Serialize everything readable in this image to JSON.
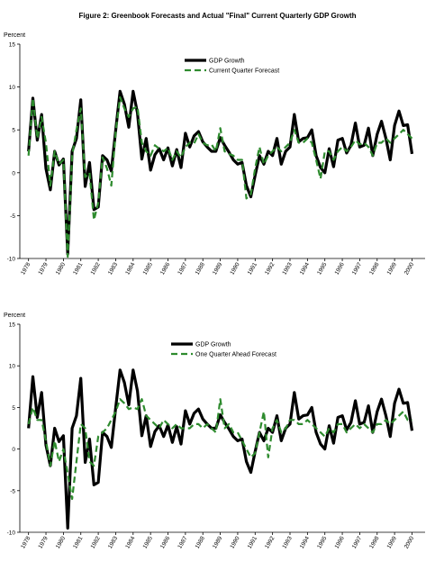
{
  "figure_title": "Figure 2: Greenbook Forecasts and Actual \"Final\" Current Quarterly GDP Growth",
  "chart_data": [
    {
      "type": "line",
      "ylabel": "Percent",
      "ylim": [
        -10,
        15
      ],
      "yticks": [
        -10,
        -5,
        0,
        5,
        10,
        15
      ],
      "xlim": [
        1977.5,
        2000.75
      ],
      "xtick_labels": [
        "1978",
        "1979",
        "1980",
        "1981",
        "1982",
        "1983",
        "1984",
        "1985",
        "1986",
        "1987",
        "1988",
        "1989",
        "1990",
        "1991",
        "1992",
        "1993",
        "1994",
        "1995",
        "1996",
        "1997",
        "1998",
        "1999",
        "2000"
      ],
      "legend_position": "top-center",
      "series": [
        {
          "name": "GDP Growth",
          "color": "#000000",
          "style": "solid",
          "values": [
            2.5,
            8.7,
            3.8,
            6.8,
            0.5,
            -2.0,
            2.5,
            0.9,
            1.6,
            -9.5,
            2.5,
            4.0,
            8.5,
            -1.6,
            1.2,
            -4.3,
            -4.0,
            2.0,
            1.5,
            0.2,
            5.0,
            9.5,
            8.0,
            5.3,
            9.5,
            7.0,
            1.6,
            4.0,
            0.3,
            2.1,
            2.8,
            1.5,
            2.9,
            0.8,
            2.7,
            0.6,
            4.6,
            3.0,
            4.3,
            4.8,
            3.6,
            3.0,
            2.5,
            2.5,
            4.1,
            3.2,
            2.4,
            1.5,
            1.0,
            1.2,
            -1.5,
            -2.8,
            -0.3,
            2.0,
            1.0,
            2.5,
            2.0,
            4.0,
            1.0,
            2.5,
            3.0,
            6.8,
            3.6,
            4.0,
            4.1,
            5.0,
            2.0,
            0.6,
            0.0,
            2.8,
            0.7,
            3.8,
            4.0,
            2.3,
            3.2,
            5.8,
            3.0,
            3.2,
            5.2,
            2.0,
            4.5,
            6.0,
            4.0,
            1.5,
            5.5,
            7.2,
            5.5,
            5.6,
            2.2
          ]
        },
        {
          "name": "Current Quarter Forecast",
          "color": "#2e8b2e",
          "style": "dashed",
          "values": [
            2.0,
            8.7,
            4.0,
            6.5,
            3.5,
            -1.5,
            2.5,
            1.0,
            1.5,
            -9.8,
            2.0,
            5.0,
            7.5,
            -0.5,
            0.0,
            -5.5,
            -3.5,
            1.8,
            0.5,
            -1.5,
            4.8,
            8.8,
            7.5,
            6.5,
            7.5,
            7.7,
            3.5,
            2.5,
            2.0,
            3.2,
            2.8,
            2.5,
            2.9,
            1.5,
            2.5,
            1.8,
            3.0,
            3.5,
            3.4,
            4.5,
            3.5,
            3.2,
            3.3,
            2.5,
            5.2,
            2.5,
            2.2,
            2.0,
            1.5,
            1.5,
            -3.0,
            -2.5,
            0.5,
            3.0,
            1.0,
            2.0,
            2.5,
            3.0,
            2.5,
            3.0,
            3.5,
            5.0,
            3.5,
            3.5,
            4.0,
            3.5,
            1.5,
            -0.7,
            2.5,
            2.5,
            1.5,
            2.5,
            3.0,
            2.5,
            3.0,
            3.8,
            3.3,
            3.5,
            3.0,
            2.0,
            3.5,
            3.5,
            4.0,
            3.5,
            4.0,
            4.5,
            5.0,
            4.5,
            4.0
          ]
        }
      ]
    },
    {
      "type": "line",
      "ylabel": "Percent",
      "ylim": [
        -10,
        15
      ],
      "yticks": [
        -10,
        -5,
        0,
        5,
        10,
        15
      ],
      "xlim": [
        1977.5,
        2000.75
      ],
      "xtick_labels": [
        "1978",
        "1979",
        "1980",
        "1981",
        "1982",
        "1983",
        "1984",
        "1985",
        "1986",
        "1987",
        "1988",
        "1989",
        "1990",
        "1991",
        "1992",
        "1993",
        "1994",
        "1995",
        "1996",
        "1997",
        "1998",
        "1999",
        "2000"
      ],
      "legend_position": "top-center",
      "series": [
        {
          "name": "GDP Growth",
          "color": "#000000",
          "style": "solid",
          "values": [
            2.5,
            8.7,
            3.8,
            6.8,
            0.5,
            -2.0,
            2.5,
            0.9,
            1.6,
            -9.5,
            2.5,
            4.0,
            8.5,
            -1.6,
            1.2,
            -4.3,
            -4.0,
            2.0,
            1.5,
            0.2,
            5.0,
            9.5,
            8.0,
            5.3,
            9.5,
            7.0,
            1.6,
            4.0,
            0.3,
            2.1,
            2.8,
            1.5,
            2.9,
            0.8,
            2.7,
            0.6,
            4.6,
            3.0,
            4.3,
            4.8,
            3.6,
            3.0,
            2.5,
            2.5,
            4.1,
            3.2,
            2.4,
            1.5,
            1.0,
            1.2,
            -1.5,
            -2.8,
            -0.3,
            2.0,
            1.0,
            2.5,
            2.0,
            4.0,
            1.0,
            2.5,
            3.0,
            6.8,
            3.6,
            4.0,
            4.1,
            5.0,
            2.0,
            0.6,
            0.0,
            2.8,
            0.7,
            3.8,
            4.0,
            2.3,
            3.2,
            5.8,
            3.0,
            3.2,
            5.2,
            2.0,
            4.5,
            6.0,
            4.0,
            1.5,
            5.5,
            7.2,
            5.5,
            5.6,
            2.2
          ]
        },
        {
          "name": "One Quarter Ahead Forecast",
          "color": "#2e8b2e",
          "style": "dashed",
          "values": [
            3.0,
            5.0,
            3.5,
            3.5,
            1.0,
            -2.0,
            1.0,
            -1.5,
            0.0,
            -3.0,
            -6.0,
            -1.5,
            3.0,
            2.5,
            -1.5,
            -2.0,
            1.5,
            2.0,
            2.5,
            3.5,
            4.5,
            6.0,
            5.5,
            4.8,
            5.0,
            4.8,
            6.0,
            4.0,
            3.5,
            3.0,
            2.5,
            3.5,
            3.0,
            2.5,
            3.0,
            2.5,
            2.5,
            2.5,
            3.0,
            3.0,
            2.5,
            3.0,
            2.5,
            2.0,
            6.0,
            2.5,
            3.0,
            2.0,
            2.0,
            1.0,
            0.0,
            -1.0,
            -0.5,
            2.0,
            4.5,
            -1.0,
            2.5,
            3.5,
            2.0,
            2.5,
            3.5,
            3.5,
            3.0,
            3.0,
            3.5,
            3.0,
            2.5,
            2.0,
            1.5,
            2.5,
            2.0,
            3.0,
            3.0,
            2.0,
            2.5,
            3.0,
            2.5,
            3.0,
            2.5,
            2.0,
            3.0,
            3.0,
            3.5,
            3.0,
            3.5,
            4.0,
            4.5,
            3.5,
            3.5
          ]
        }
      ]
    }
  ]
}
